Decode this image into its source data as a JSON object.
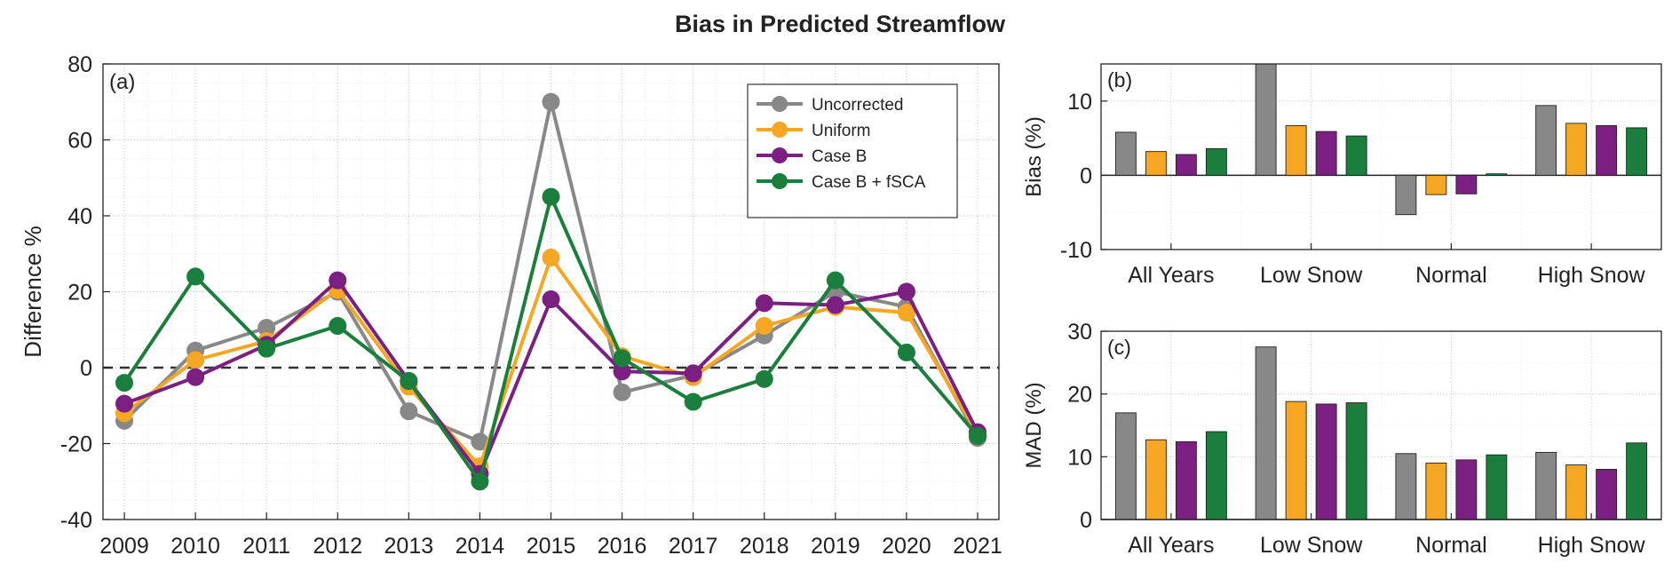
{
  "title": "Bias in Predicted Streamflow",
  "colors": {
    "Uncorrected": "#888888",
    "Uniform": "#f5a623",
    "Case B": "#7b1f82",
    "Case B + fSCA": "#1a7f3c"
  },
  "chart_data": [
    {
      "panel": "(a)",
      "type": "line",
      "ylabel": "Difference %",
      "xlabel": "",
      "ylim": [
        -40,
        80
      ],
      "yticks": [
        -40,
        -20,
        0,
        20,
        40,
        60,
        80
      ],
      "categories": [
        "2009",
        "2010",
        "2011",
        "2012",
        "2013",
        "2014",
        "2015",
        "2016",
        "2017",
        "2018",
        "2019",
        "2020",
        "2021"
      ],
      "reference_line": 0,
      "grid": true,
      "legend_position": "top-right",
      "series": [
        {
          "name": "Uncorrected",
          "values": [
            -14,
            4.5,
            10.5,
            20,
            -11.5,
            -19.5,
            70,
            -6.5,
            -2,
            8.5,
            20,
            16,
            -18.5
          ]
        },
        {
          "name": "Uniform",
          "values": [
            -12,
            2,
            7,
            20.5,
            -5,
            -26,
            29,
            3,
            -2.5,
            11,
            16,
            14.5,
            -17.5
          ]
        },
        {
          "name": "Case B",
          "values": [
            -9.5,
            -2.5,
            6,
            23,
            -3.5,
            -28,
            18,
            -1,
            -1.5,
            17,
            16.5,
            20,
            -17
          ]
        },
        {
          "name": "Case B + fSCA",
          "values": [
            -4,
            24,
            5,
            11,
            -3.5,
            -30,
            45,
            2.5,
            -9,
            -3,
            23,
            4,
            -18
          ]
        }
      ]
    },
    {
      "panel": "(b)",
      "type": "bar",
      "ylabel": "Bias (%)",
      "ylim": [
        -10,
        15
      ],
      "yticks": [
        -10,
        0,
        10
      ],
      "categories": [
        "All Years",
        "Low Snow",
        "Normal",
        "High Snow"
      ],
      "series": [
        {
          "name": "Uncorrected",
          "values": [
            5.8,
            15,
            -5.3,
            9.4
          ]
        },
        {
          "name": "Uniform",
          "values": [
            3.2,
            6.7,
            -2.6,
            7
          ]
        },
        {
          "name": "Case B",
          "values": [
            2.8,
            5.9,
            -2.5,
            6.7
          ]
        },
        {
          "name": "Case B + fSCA",
          "values": [
            3.6,
            5.3,
            0.2,
            6.4
          ]
        }
      ]
    },
    {
      "panel": "(c)",
      "type": "bar",
      "ylabel": "MAD (%)",
      "ylim": [
        0,
        30
      ],
      "yticks": [
        0,
        10,
        20,
        30
      ],
      "categories": [
        "All Years",
        "Low Snow",
        "Normal",
        "High Snow"
      ],
      "series": [
        {
          "name": "Uncorrected",
          "values": [
            17,
            27.5,
            10.5,
            10.7
          ]
        },
        {
          "name": "Uniform",
          "values": [
            12.7,
            18.8,
            9,
            8.7
          ]
        },
        {
          "name": "Case B",
          "values": [
            12.4,
            18.4,
            9.5,
            8
          ]
        },
        {
          "name": "Case B + fSCA",
          "values": [
            14,
            18.6,
            10.3,
            12.2
          ]
        }
      ]
    }
  ]
}
